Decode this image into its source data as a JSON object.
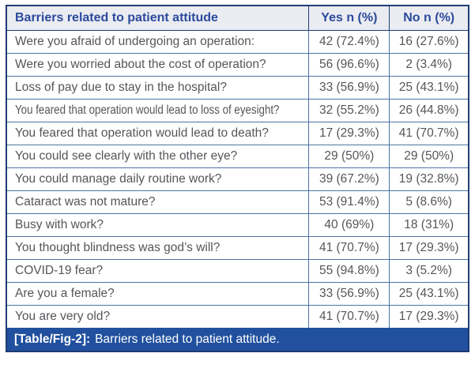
{
  "table": {
    "columns": [
      "Barriers related to patient attitude",
      "Yes n (%)",
      "No n (%)"
    ],
    "rows": [
      {
        "label": "Were you afraid of undergoing an operation:",
        "yes": "42 (72.4%)",
        "no": "16 (27.6%)"
      },
      {
        "label": "Were you worried about the cost of operation?",
        "yes": "56 (96.6%)",
        "no": "2 (3.4%)"
      },
      {
        "label": "Loss of pay due to stay in the hospital?",
        "yes": "33 (56.9%)",
        "no": "25 (43.1%)"
      },
      {
        "label": "You feared that operation would lead to loss of eyesight?",
        "yes": "32 (55.2%)",
        "no": "26 (44.8%)"
      },
      {
        "label": "You feared that operation would lead to death?",
        "yes": "17 (29.3%)",
        "no": "41 (70.7%)"
      },
      {
        "label": "You could see clearly with the other eye?",
        "yes": "29 (50%)",
        "no": "29 (50%)"
      },
      {
        "label": "You could manage daily routine work?",
        "yes": "39 (67.2%)",
        "no": "19 (32.8%)"
      },
      {
        "label": "Cataract was not mature?",
        "yes": "53 (91.4%)",
        "no": "5 (8.6%)"
      },
      {
        "label": "Busy with work?",
        "yes": "40 (69%)",
        "no": "18 (31%)"
      },
      {
        "label": "You thought blindness was god’s will?",
        "yes": "41 (70.7%)",
        "no": "17 (29.3%)"
      },
      {
        "label": "COVID-19 fear?",
        "yes": "55 (94.8%)",
        "no": "3 (5.2%)"
      },
      {
        "label": "Are you a female?",
        "yes": "33 (56.9%)",
        "no": "25 (43.1%)"
      },
      {
        "label": "You are very old?",
        "yes": "41 (70.7%)",
        "no": "17 (29.3%)"
      }
    ]
  },
  "caption": {
    "tag": "[Table/Fig-2]:",
    "text": "Barriers related to patient attitude."
  },
  "colors": {
    "outer_border": "#1f3c74",
    "inner_border": "#4d74a4",
    "header_bg": "#ebecf2",
    "header_text": "#2b4a9c",
    "body_text": "#55565a",
    "caption_bg": "#21509e",
    "caption_text": "#ffffff"
  }
}
